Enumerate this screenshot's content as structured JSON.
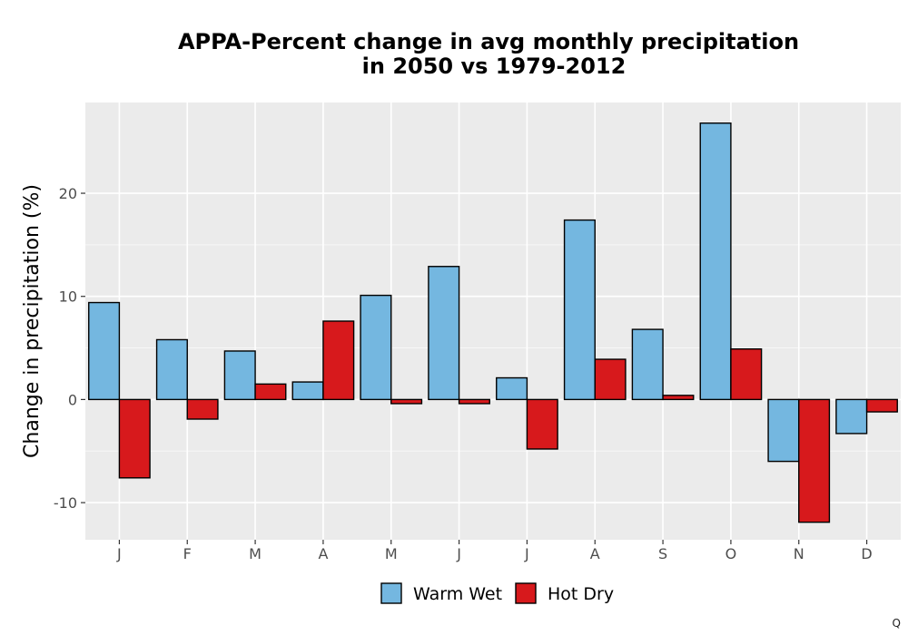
{
  "chart_data": {
    "type": "bar",
    "title_line1": "APPA-Percent change in avg monthly precipitation",
    "title_line2": "in 2050 vs 1979-2012",
    "xlabel": "",
    "ylabel": "Change in precipitation (%)",
    "categories": [
      "J",
      "F",
      "M",
      "A",
      "M",
      "J",
      "J",
      "A",
      "S",
      "O",
      "N",
      "D"
    ],
    "series": [
      {
        "name": "Warm Wet",
        "color": "#74b7e0",
        "values": [
          9.4,
          5.8,
          4.7,
          1.7,
          10.1,
          12.9,
          2.1,
          17.4,
          6.8,
          26.8,
          -6.0,
          -3.3
        ]
      },
      {
        "name": "Hot Dry",
        "color": "#d7191c",
        "values": [
          -7.6,
          -1.9,
          1.5,
          7.6,
          -0.4,
          -0.4,
          -4.8,
          3.9,
          0.4,
          4.9,
          -11.9,
          -1.2
        ]
      }
    ],
    "ylim": [
      -13.6,
      28.8
    ],
    "yticks": [
      -10,
      0,
      10,
      20
    ],
    "ytick_labels": [
      "-10",
      "0",
      "10",
      "20"
    ],
    "grid": true,
    "legend_position": "bottom",
    "panel_background": "#ebebeb"
  },
  "corner_mark": "Q"
}
